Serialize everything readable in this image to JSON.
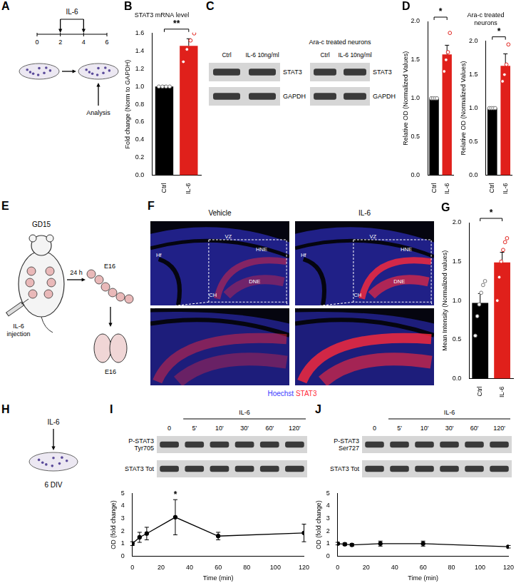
{
  "chart_data": [
    {
      "panel": "B",
      "type": "bar",
      "title": "STAT3 mRNA level",
      "y_label": "Fold change (Norm to GAPDH)",
      "categories": [
        "Ctrl",
        "IL-6"
      ],
      "values": [
        1.0,
        1.46
      ],
      "errors": [
        0.01,
        0.08
      ],
      "points": [
        [
          1.0,
          1.0,
          1.0,
          1.0
        ],
        [
          1.28,
          1.42,
          1.52,
          1.6
        ]
      ],
      "colors": [
        "#000000",
        "#e0201b"
      ],
      "ylim": [
        0,
        1.6
      ],
      "yticks": [
        {
          "value": 0,
          "label": "0.0"
        },
        0.2,
        0.4,
        0.6,
        0.8,
        {
          "value": 1,
          "label": "1.0"
        },
        1.2,
        1.4,
        1.6
      ],
      "significance": "**",
      "grid": false
    },
    {
      "panel": "D",
      "type": "bar",
      "y_label": "Relative OD (Normalized Values)",
      "categories": [
        "Ctrl",
        "IL-6"
      ],
      "values": [
        1.0,
        1.57
      ],
      "errors": [
        0.01,
        0.12
      ],
      "points": [
        [
          1.0,
          1.0,
          1.0,
          1.0
        ],
        [
          1.35,
          1.5,
          1.6,
          1.85
        ]
      ],
      "colors": [
        "#000000",
        "#e0201b"
      ],
      "ylim": [
        0,
        2
      ],
      "yticks": [
        {
          "value": 0,
          "label": "0.0"
        },
        0.5,
        {
          "value": 1,
          "label": "1.0"
        },
        1.5,
        {
          "value": 2,
          "label": "2.0"
        }
      ],
      "significance": "*",
      "grid": false
    },
    {
      "type": "bar",
      "title": "Ara-c treated neurons",
      "y_label": "Relative OD (Normalized Values)",
      "categories": [
        "Ctrl",
        "IL-6"
      ],
      "values": [
        1.0,
        1.63
      ],
      "errors": [
        0.01,
        0.18
      ],
      "points": [
        [
          1.0,
          1.0,
          1.0,
          1.0
        ],
        [
          1.4,
          1.5,
          1.65,
          1.95
        ]
      ],
      "colors": [
        "#000000",
        "#e0201b"
      ],
      "ylim": [
        0,
        2
      ],
      "yticks": [
        {
          "value": 0,
          "label": "0.0"
        },
        0.5,
        {
          "value": 1,
          "label": "1.0"
        },
        1.5,
        {
          "value": 2,
          "label": "2.0"
        }
      ],
      "significance": "*",
      "grid": false
    },
    {
      "panel": "G",
      "type": "bar",
      "y_label": "Mean Intensity (Normalized values)",
      "categories": [
        "Ctrl",
        "IL-6"
      ],
      "values": [
        0.97,
        1.49
      ],
      "errors": [
        0.12,
        0.13
      ],
      "points": [
        [
          0.55,
          0.8,
          0.95,
          1.1,
          1.2,
          1.25
        ],
        [
          1.0,
          1.3,
          1.5,
          1.65,
          1.75,
          1.8
        ]
      ],
      "colors": [
        "#000000",
        "#e0201b"
      ],
      "ylim": [
        0,
        2
      ],
      "yticks": [
        {
          "value": 0,
          "label": "0.0"
        },
        0.5,
        {
          "value": 1,
          "label": "1.0"
        },
        1.5,
        {
          "value": 2,
          "label": "2.0"
        }
      ],
      "significance": "*",
      "grid": false
    },
    {
      "panel": "I",
      "type": "line",
      "x_label": "Time (min)",
      "y_label": "OD (fold change)",
      "x": [
        0,
        5,
        10,
        30,
        60,
        120
      ],
      "values": [
        1.0,
        1.5,
        1.8,
        3.1,
        1.6,
        1.85
      ],
      "errors": [
        0.15,
        0.4,
        0.5,
        1.4,
        0.3,
        0.7
      ],
      "xlim": [
        0,
        120
      ],
      "xticks": [
        0,
        20,
        40,
        60,
        80,
        100,
        120
      ],
      "ylim": [
        0,
        5
      ],
      "yticks": [
        0,
        1,
        2,
        3,
        4,
        5
      ],
      "significance": {
        "x": 30,
        "text": "*"
      },
      "color": "#000000",
      "marker": "circle",
      "grid": false
    },
    {
      "panel": "J",
      "type": "line",
      "x_label": "Time (min)",
      "y_label": "OD (fold change)",
      "x": [
        0,
        5,
        10,
        30,
        60,
        120
      ],
      "values": [
        1.0,
        0.95,
        0.9,
        1.0,
        1.0,
        0.75
      ],
      "errors": [
        0.1,
        0.1,
        0.1,
        0.2,
        0.2,
        0.1
      ],
      "xlim": [
        0,
        120
      ],
      "xticks": [
        0,
        20,
        40,
        60,
        80,
        100,
        120
      ],
      "ylim": [
        0,
        5
      ],
      "yticks": [
        0,
        1,
        2,
        3,
        4,
        5
      ],
      "color": "#000000",
      "marker": "circle",
      "grid": false
    }
  ],
  "panels": {
    "A": {
      "label": "A",
      "treatment": "IL-6",
      "timeline": [
        0,
        2,
        4,
        6
      ],
      "treatment_days": [
        2,
        4
      ],
      "readout": "Analysis"
    },
    "C": {
      "label": "C",
      "blots": [
        {
          "lanes": [
            "Ctrl",
            "IL-6 10ng/ml"
          ],
          "rows": [
            "STAT3",
            "GAPDH"
          ]
        },
        {
          "title": "Ara-c treated neurons",
          "lanes": [
            "Ctrl",
            "IL-6 10ng/ml"
          ],
          "rows": [
            "STAT3",
            "GAPDH"
          ]
        }
      ]
    },
    "E": {
      "label": "E",
      "stage": "GD15",
      "injection": "IL-6 injection",
      "interval": "24 h",
      "embryo_stage": "E16",
      "brain_stage": "E16"
    },
    "F": {
      "label": "F",
      "conditions": [
        "Vehicle",
        "IL-6"
      ],
      "regions": [
        "VZ",
        "HNE",
        "DNE",
        "CH",
        "Hf"
      ],
      "stains": [
        {
          "name": "Hoechst",
          "color": "#3b3bff"
        },
        {
          "name": "STAT3",
          "color": "#ff2a3a"
        }
      ]
    },
    "H": {
      "label": "H",
      "treatment": "IL-6",
      "stage": "6 DIV"
    },
    "I_blot": {
      "treatment": "IL-6",
      "lanes": [
        "0",
        "5'",
        "10'",
        "30'",
        "60'",
        "120'"
      ],
      "rows": [
        "P-STAT3 Tyr705",
        "STAT3 Tot"
      ]
    },
    "J_blot": {
      "treatment": "IL-6",
      "lanes": [
        "0",
        "5'",
        "10'",
        "30'",
        "60'",
        "120'"
      ],
      "rows": [
        "P-STAT3 Ser727",
        "STAT3 Tot"
      ]
    }
  }
}
